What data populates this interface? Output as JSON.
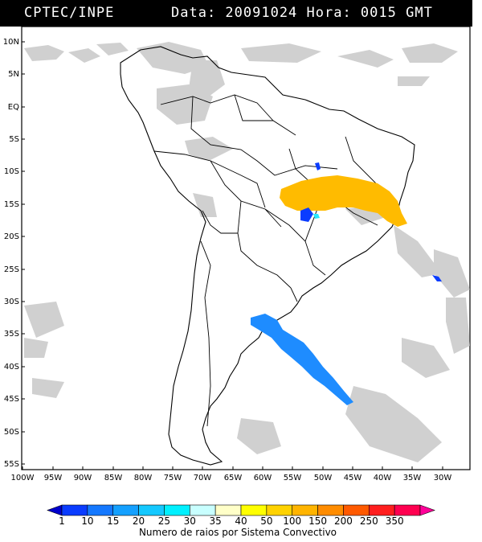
{
  "header": {
    "source": "CPTEC/INPE",
    "datetime": "Data: 20091024 Hora: 0015 GMT"
  },
  "map": {
    "lat_labels": [
      "10N",
      "5N",
      "EQ",
      "5S",
      "10S",
      "15S",
      "20S",
      "25S",
      "30S",
      "35S",
      "40S",
      "45S",
      "50S",
      "55S"
    ],
    "lon_labels": [
      "100W",
      "95W",
      "90W",
      "85W",
      "80W",
      "75W",
      "70W",
      "65W",
      "60W",
      "55W",
      "50W",
      "45W",
      "40W",
      "35W",
      "30W"
    ]
  },
  "legend": {
    "values": [
      "1",
      "10",
      "15",
      "20",
      "25",
      "30",
      "35",
      "40",
      "50",
      "100",
      "150",
      "200",
      "250",
      "350"
    ],
    "colors": [
      "#0000cc",
      "#0a3cff",
      "#1478ff",
      "#14a0ff",
      "#14c8ff",
      "#00f0ff",
      "#c8ffff",
      "#ffffc8",
      "#ffff00",
      "#ffd200",
      "#ffb400",
      "#ff8c00",
      "#ff5a00",
      "#ff1e1e",
      "#ff0050",
      "#ff0099"
    ],
    "title": "Numero de raios por Sistema Convectivo"
  },
  "colors": {
    "storm_orange": "#ffbb00",
    "storm_blue": "#1e8cff",
    "storm_darkblue": "#0a3cff",
    "storm_cyan": "#28e8ff",
    "cloud_gray": "#c4c4c4"
  }
}
